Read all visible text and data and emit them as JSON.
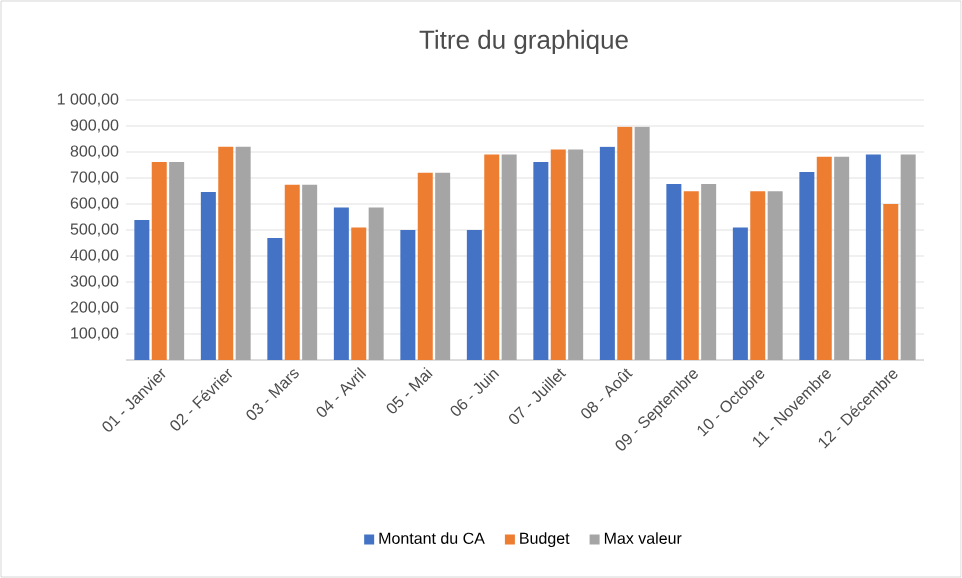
{
  "chart_data": {
    "type": "bar",
    "title": "Titre du graphique",
    "categories": [
      "01 - Janvier",
      "02 - Février",
      "03 - Mars",
      "04 - Avril",
      "05 - Mai",
      "06 - Juin",
      "07 - Juillet",
      "08 - Août",
      "09 - Septembre",
      "10 - Octobre",
      "11 - Novembre",
      "12 - Décembre"
    ],
    "series": [
      {
        "name": "Montant du CA",
        "color": "#4472c4",
        "values": [
          538,
          646,
          469,
          587,
          500,
          500,
          762,
          820,
          677,
          510,
          723,
          790
        ]
      },
      {
        "name": "Budget",
        "color": "#ed7d31",
        "values": [
          762,
          820,
          674,
          510,
          720,
          790,
          810,
          897,
          649,
          649,
          782,
          600
        ]
      },
      {
        "name": "Max valeur",
        "color": "#a5a5a5",
        "values": [
          762,
          820,
          674,
          587,
          720,
          790,
          810,
          897,
          677,
          649,
          782,
          790
        ]
      }
    ],
    "ylim": [
      0,
      1000
    ],
    "yticks": [
      {
        "value": 0,
        "label": null
      },
      {
        "value": 100,
        "label": "100,00"
      },
      {
        "value": 200,
        "label": "200,00"
      },
      {
        "value": 300,
        "label": "300,00"
      },
      {
        "value": 400,
        "label": "400,00"
      },
      {
        "value": 500,
        "label": "500,00"
      },
      {
        "value": 600,
        "label": "600,00"
      },
      {
        "value": 700,
        "label": "700,00"
      },
      {
        "value": 800,
        "label": "800,00"
      },
      {
        "value": 900,
        "label": "900,00"
      },
      {
        "value": 1000,
        "label": "1 000,00"
      }
    ],
    "grid": "y",
    "legend": "bottom"
  }
}
